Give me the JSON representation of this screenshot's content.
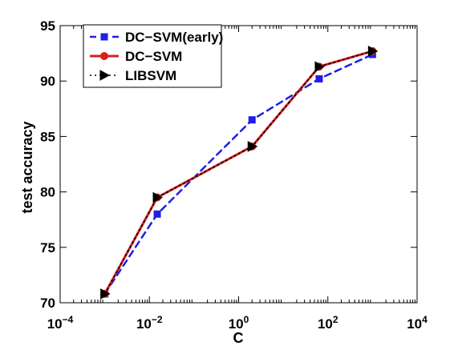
{
  "chart_data": {
    "type": "line",
    "xlabel": "C",
    "ylabel": "test accuracy",
    "xscale": "log",
    "xlim": [
      0.0001,
      10000
    ],
    "ylim": [
      70,
      95
    ],
    "xticks": [
      {
        "value": 0.0001,
        "base": "10",
        "exp": "−4"
      },
      {
        "value": 0.01,
        "base": "10",
        "exp": "−2"
      },
      {
        "value": 1,
        "base": "10",
        "exp": "0"
      },
      {
        "value": 100,
        "base": "10",
        "exp": "2"
      },
      {
        "value": 10000,
        "base": "10",
        "exp": "4"
      }
    ],
    "yticks": [
      "70",
      "75",
      "80",
      "85",
      "90",
      "95"
    ],
    "grid": false,
    "legend_position": "top-left",
    "x": [
      0.001,
      0.015,
      2,
      64,
      1000
    ],
    "series": [
      {
        "name": "DC−SVM(early)",
        "values": [
          70.8,
          78.0,
          86.5,
          90.2,
          92.4
        ],
        "color": "#1f1fe6",
        "line": "dashed",
        "marker": "square"
      },
      {
        "name": "DC−SVM",
        "values": [
          70.8,
          79.5,
          84.1,
          91.3,
          92.7
        ],
        "color": "#d81e1e",
        "line": "solid",
        "marker": "circle"
      },
      {
        "name": "LIBSVM",
        "values": [
          70.8,
          79.5,
          84.1,
          91.3,
          92.7
        ],
        "color": "#000000",
        "line": "dotted",
        "marker": "triangle-right"
      }
    ]
  }
}
